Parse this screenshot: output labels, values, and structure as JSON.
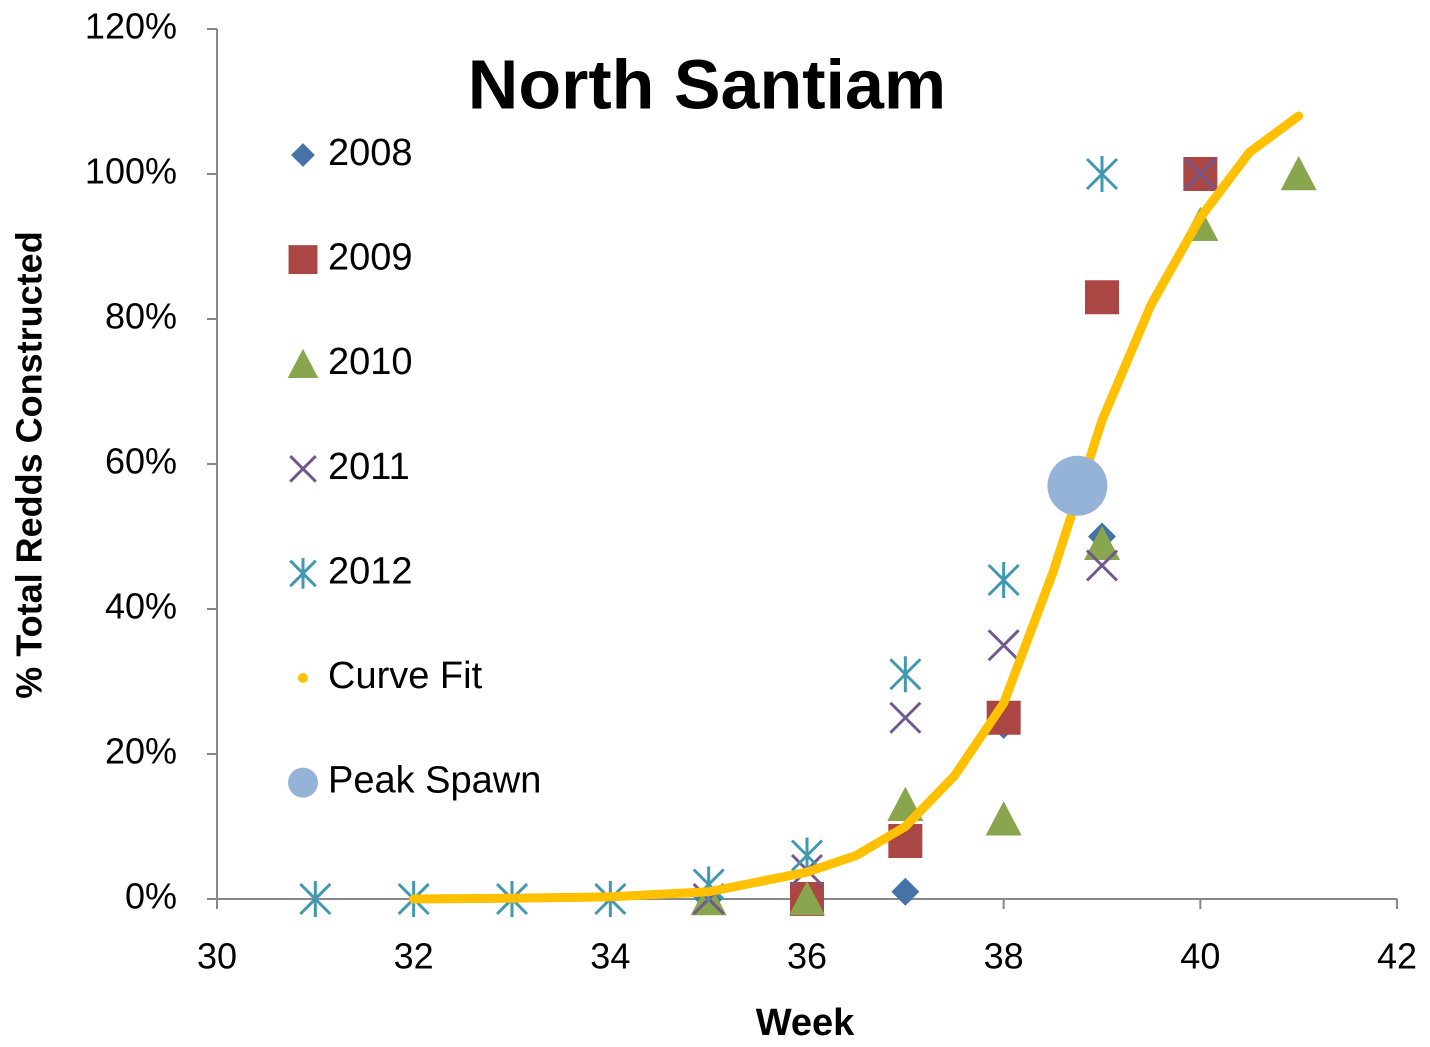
{
  "chart_data": {
    "type": "scatter",
    "title": "North Santiam",
    "xlabel": "Week",
    "ylabel": "% Total Redds Constructed",
    "xlim": [
      30,
      42
    ],
    "xticks": [
      30,
      32,
      34,
      36,
      38,
      40,
      42
    ],
    "ylim": [
      0,
      120
    ],
    "yticks": [
      {
        "value": 0,
        "label": "0%"
      },
      {
        "value": 20,
        "label": "20%"
      },
      {
        "value": 40,
        "label": "40%"
      },
      {
        "value": 60,
        "label": "60%"
      },
      {
        "value": 80,
        "label": "80%"
      },
      {
        "value": 100,
        "label": "100%"
      },
      {
        "value": 120,
        "label": "120%"
      }
    ],
    "grid": false,
    "legend": "left",
    "series": [
      {
        "name": "2008",
        "color": "#4572a7",
        "marker": "diamond",
        "x": [
          35,
          36,
          37,
          38,
          39,
          40
        ],
        "values": [
          0,
          0,
          1,
          24,
          50,
          100
        ]
      },
      {
        "name": "2009",
        "color": "#aa4643",
        "marker": "square",
        "x": [
          36,
          37,
          38,
          39,
          40
        ],
        "values": [
          0,
          8,
          25,
          83,
          100
        ]
      },
      {
        "name": "2010",
        "color": "#89a54e",
        "marker": "triangle",
        "x": [
          35,
          36,
          37,
          38,
          39,
          40,
          41
        ],
        "values": [
          0,
          0,
          13,
          11,
          49,
          93,
          100
        ]
      },
      {
        "name": "2011",
        "color": "#71588f",
        "marker": "x",
        "x": [
          35,
          36,
          37,
          38,
          39,
          40
        ],
        "values": [
          0,
          4,
          25,
          35,
          46,
          100
        ]
      },
      {
        "name": "2012",
        "color": "#4198af",
        "marker": "asterisk",
        "x": [
          31,
          32,
          33,
          34,
          35,
          36,
          37,
          38,
          39
        ],
        "values": [
          0,
          0,
          0,
          0,
          2,
          6,
          31,
          44,
          100
        ]
      },
      {
        "name": "Curve Fit",
        "color": "#ffc000",
        "marker": "dot",
        "line": true,
        "x": [
          32,
          33,
          34,
          35,
          36,
          36.5,
          37,
          37.5,
          38,
          38.5,
          39,
          39.5,
          40,
          40.5,
          41
        ],
        "values": [
          0,
          0.1,
          0.3,
          1,
          3.7,
          6,
          10,
          17,
          27,
          45,
          66,
          82,
          94,
          103,
          108
        ]
      },
      {
        "name": "Peak Spawn",
        "color": "#95b3d7",
        "marker": "circle",
        "x": [
          38.75
        ],
        "values": [
          57
        ]
      }
    ]
  }
}
